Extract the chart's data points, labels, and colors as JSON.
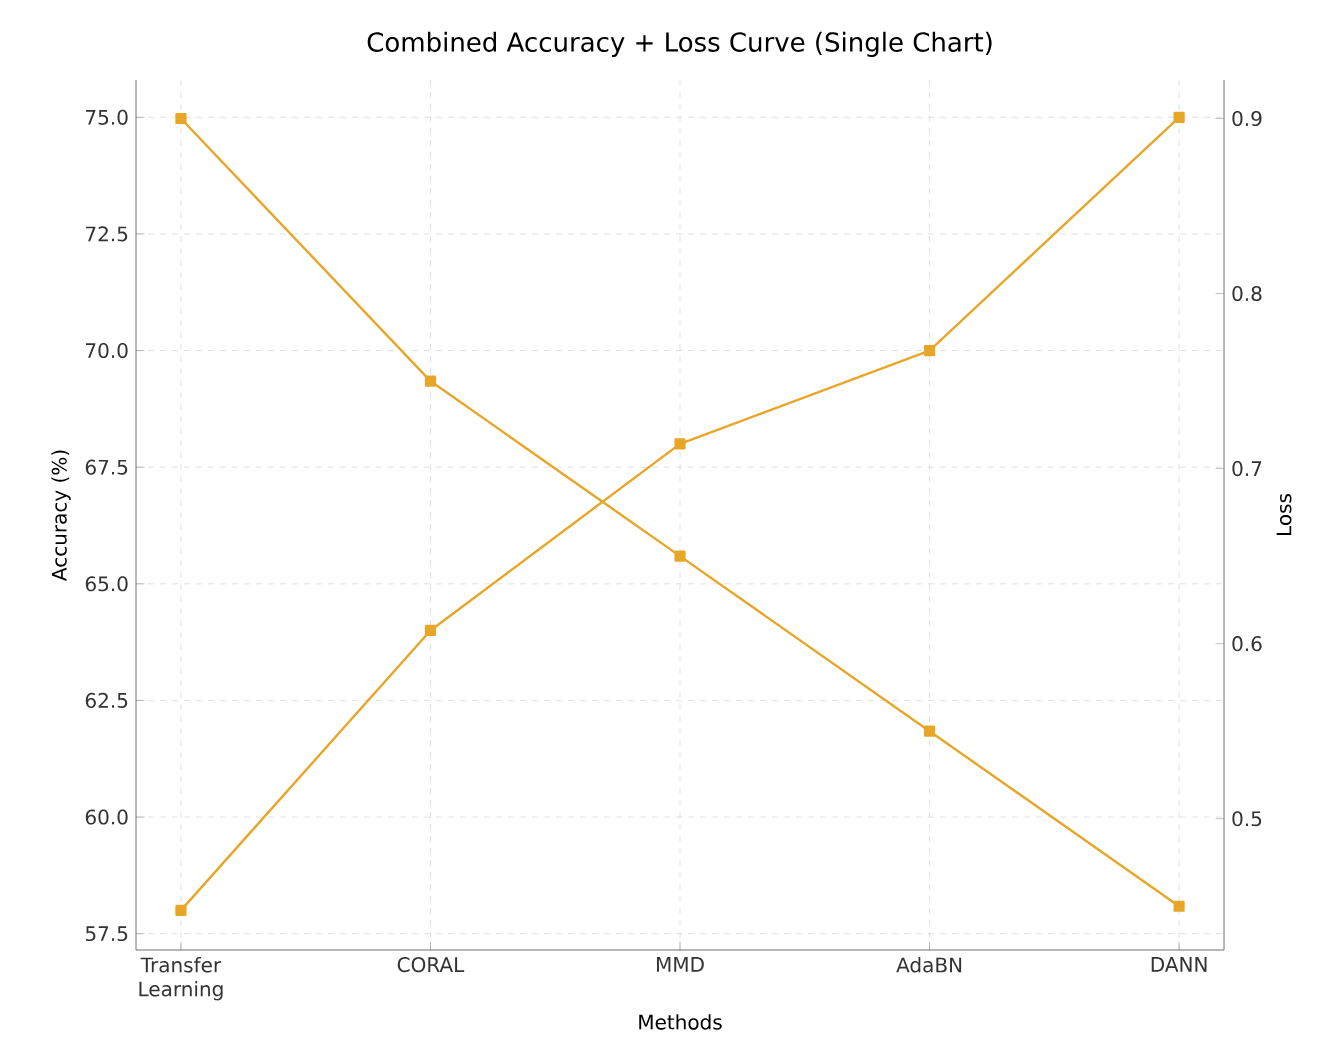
{
  "chart_data": {
    "type": "line",
    "title": "Combined Accuracy + Loss Curve (Single Chart)",
    "xlabel": "Methods",
    "ylabel": "Accuracy (%)",
    "y2label": "Loss",
    "categories": [
      "Transfer Learning",
      "CORAL",
      "MMD",
      "AdaBN",
      "DANN"
    ],
    "series": [
      {
        "color": "#e8a628",
        "values": [
          58,
          64,
          68,
          70,
          75
        ]
      },
      {
        "color": "#e8a628",
        "axis": "y2",
        "values": [
          0.9,
          0.75,
          0.65,
          0.55,
          0.45
        ]
      }
    ],
    "ylim": [
      57.15,
      75.8
    ],
    "yticks": [
      57.5,
      {
        "value": 60,
        "label": "60.0"
      },
      62.5,
      {
        "value": 65,
        "label": "65.0"
      },
      67.5,
      {
        "value": 70,
        "label": "70.0"
      },
      72.5,
      {
        "value": 75,
        "label": "75.0"
      }
    ],
    "y2lim": [
      0.425,
      0.922
    ],
    "y2ticks": [
      0.5,
      0.6,
      0.7,
      0.8,
      0.9
    ],
    "grid": true,
    "marker": "square",
    "line_style": "solid"
  }
}
